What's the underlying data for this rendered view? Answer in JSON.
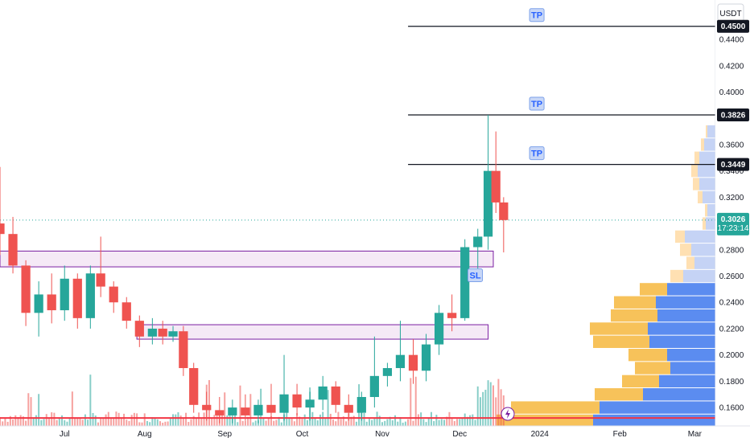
{
  "chart_data": {
    "type": "candlestick",
    "quote_currency": "USDT",
    "price_axis": {
      "ticks": [
        "0.1600",
        "0.1800",
        "0.2000",
        "0.2200",
        "0.2400",
        "0.2600",
        "0.2800",
        "0.3200",
        "0.3400",
        "0.3600",
        "0.4000",
        "0.4200",
        "0.4400"
      ],
      "tick_values": [
        0.16,
        0.18,
        0.2,
        0.22,
        0.24,
        0.26,
        0.28,
        0.32,
        0.34,
        0.36,
        0.4,
        0.42,
        0.44
      ],
      "range": [
        0.146,
        0.47
      ]
    },
    "time_axis": {
      "labels": [
        "Jul",
        "Aug",
        "Sep",
        "Oct",
        "Nov",
        "Dec",
        "2024",
        "Feb",
        "Mar"
      ],
      "label_days": [
        0,
        31,
        62,
        92,
        123,
        153,
        184,
        215,
        244
      ],
      "range_days": [
        -25,
        252
      ]
    },
    "last_price": {
      "value": "0.3026",
      "countdown": "17:23:14",
      "color": "#26a69a"
    },
    "price_tags": [
      {
        "text": "0.3826",
        "value": 0.3826
      },
      {
        "text": "0.3449",
        "value": 0.3449
      },
      {
        "text": "0.4500",
        "value": 0.45
      }
    ],
    "horizontal_lines": [
      {
        "label": "TP",
        "value": 0.45,
        "start_day": 133
      },
      {
        "label": "TP",
        "value": 0.3826,
        "start_day": 133
      },
      {
        "label": "TP",
        "value": 0.3449,
        "start_day": 133
      },
      {
        "label": "",
        "value": 0.152,
        "start_day": -25,
        "color": "#f23645"
      }
    ],
    "zones": [
      {
        "top": 0.279,
        "bottom": 0.267,
        "start_day": -25,
        "end_day": 166
      },
      {
        "top": 0.223,
        "bottom": 0.212,
        "start_day": 28,
        "end_day": 164
      }
    ],
    "markers": [
      {
        "label": "SL",
        "value": 0.26,
        "day": 159
      }
    ],
    "candles": [
      {
        "day": -25,
        "o": 0.3,
        "h": 0.343,
        "l": 0.276,
        "c": 0.292
      },
      {
        "day": -20,
        "o": 0.292,
        "h": 0.305,
        "l": 0.262,
        "c": 0.268
      },
      {
        "day": -15,
        "o": 0.268,
        "h": 0.272,
        "l": 0.222,
        "c": 0.232
      },
      {
        "day": -10,
        "o": 0.232,
        "h": 0.256,
        "l": 0.214,
        "c": 0.246
      },
      {
        "day": -5,
        "o": 0.246,
        "h": 0.262,
        "l": 0.224,
        "c": 0.234
      },
      {
        "day": 0,
        "o": 0.234,
        "h": 0.268,
        "l": 0.226,
        "c": 0.258
      },
      {
        "day": 5,
        "o": 0.258,
        "h": 0.262,
        "l": 0.22,
        "c": 0.228
      },
      {
        "day": 10,
        "o": 0.228,
        "h": 0.268,
        "l": 0.22,
        "c": 0.262
      },
      {
        "day": 14,
        "o": 0.262,
        "h": 0.29,
        "l": 0.244,
        "c": 0.252
      },
      {
        "day": 19,
        "o": 0.252,
        "h": 0.256,
        "l": 0.232,
        "c": 0.24
      },
      {
        "day": 24,
        "o": 0.24,
        "h": 0.244,
        "l": 0.22,
        "c": 0.226
      },
      {
        "day": 29,
        "o": 0.226,
        "h": 0.23,
        "l": 0.206,
        "c": 0.214
      },
      {
        "day": 34,
        "o": 0.214,
        "h": 0.228,
        "l": 0.208,
        "c": 0.22
      },
      {
        "day": 38,
        "o": 0.22,
        "h": 0.226,
        "l": 0.208,
        "c": 0.214
      },
      {
        "day": 42,
        "o": 0.214,
        "h": 0.222,
        "l": 0.21,
        "c": 0.218
      },
      {
        "day": 46,
        "o": 0.218,
        "h": 0.222,
        "l": 0.184,
        "c": 0.19
      },
      {
        "day": 50,
        "o": 0.19,
        "h": 0.194,
        "l": 0.156,
        "c": 0.162
      },
      {
        "day": 55,
        "o": 0.162,
        "h": 0.172,
        "l": 0.15,
        "c": 0.158
      },
      {
        "day": 60,
        "o": 0.158,
        "h": 0.168,
        "l": 0.148,
        "c": 0.154
      },
      {
        "day": 65,
        "o": 0.154,
        "h": 0.166,
        "l": 0.148,
        "c": 0.16
      },
      {
        "day": 70,
        "o": 0.16,
        "h": 0.17,
        "l": 0.15,
        "c": 0.154
      },
      {
        "day": 75,
        "o": 0.154,
        "h": 0.166,
        "l": 0.148,
        "c": 0.162
      },
      {
        "day": 80,
        "o": 0.162,
        "h": 0.178,
        "l": 0.152,
        "c": 0.156
      },
      {
        "day": 85,
        "o": 0.156,
        "h": 0.2,
        "l": 0.15,
        "c": 0.17
      },
      {
        "day": 90,
        "o": 0.17,
        "h": 0.178,
        "l": 0.154,
        "c": 0.16
      },
      {
        "day": 95,
        "o": 0.16,
        "h": 0.172,
        "l": 0.15,
        "c": 0.166
      },
      {
        "day": 100,
        "o": 0.166,
        "h": 0.184,
        "l": 0.158,
        "c": 0.176
      },
      {
        "day": 105,
        "o": 0.176,
        "h": 0.18,
        "l": 0.156,
        "c": 0.162
      },
      {
        "day": 110,
        "o": 0.162,
        "h": 0.17,
        "l": 0.15,
        "c": 0.156
      },
      {
        "day": 115,
        "o": 0.156,
        "h": 0.172,
        "l": 0.15,
        "c": 0.168
      },
      {
        "day": 120,
        "o": 0.168,
        "h": 0.214,
        "l": 0.16,
        "c": 0.184
      },
      {
        "day": 125,
        "o": 0.184,
        "h": 0.194,
        "l": 0.176,
        "c": 0.19
      },
      {
        "day": 130,
        "o": 0.19,
        "h": 0.226,
        "l": 0.18,
        "c": 0.2
      },
      {
        "day": 135,
        "o": 0.2,
        "h": 0.212,
        "l": 0.178,
        "c": 0.188
      },
      {
        "day": 140,
        "o": 0.188,
        "h": 0.216,
        "l": 0.18,
        "c": 0.208
      },
      {
        "day": 145,
        "o": 0.208,
        "h": 0.238,
        "l": 0.2,
        "c": 0.232
      },
      {
        "day": 150,
        "o": 0.232,
        "h": 0.246,
        "l": 0.218,
        "c": 0.228
      },
      {
        "day": 155,
        "o": 0.228,
        "h": 0.288,
        "l": 0.226,
        "c": 0.282
      },
      {
        "day": 160,
        "o": 0.282,
        "h": 0.296,
        "l": 0.262,
        "c": 0.29
      },
      {
        "day": 164,
        "o": 0.29,
        "h": 0.3826,
        "l": 0.28,
        "c": 0.34
      },
      {
        "day": 167,
        "o": 0.34,
        "h": 0.37,
        "l": 0.308,
        "c": 0.316
      },
      {
        "day": 170,
        "o": 0.316,
        "h": 0.32,
        "l": 0.278,
        "c": 0.3026
      }
    ],
    "volume_profile": [
      {
        "price": 0.37,
        "up": 2,
        "down": 10
      },
      {
        "price": 0.36,
        "up": 4,
        "down": 14
      },
      {
        "price": 0.35,
        "up": 6,
        "down": 20
      },
      {
        "price": 0.34,
        "up": 8,
        "down": 22
      },
      {
        "price": 0.33,
        "up": 8,
        "down": 20
      },
      {
        "price": 0.32,
        "up": 6,
        "down": 16
      },
      {
        "price": 0.31,
        "up": 3,
        "down": 10
      },
      {
        "price": 0.3,
        "up": 4,
        "down": 12
      },
      {
        "price": 0.29,
        "up": 12,
        "down": 38
      },
      {
        "price": 0.28,
        "up": 14,
        "down": 30
      },
      {
        "price": 0.27,
        "up": 10,
        "down": 26
      },
      {
        "price": 0.26,
        "up": 16,
        "down": 40
      },
      {
        "price": 0.25,
        "up": 34,
        "down": 60
      },
      {
        "price": 0.24,
        "up": 52,
        "down": 74
      },
      {
        "price": 0.23,
        "up": 58,
        "down": 72
      },
      {
        "price": 0.22,
        "up": 72,
        "down": 84
      },
      {
        "price": 0.21,
        "up": 70,
        "down": 82
      },
      {
        "price": 0.2,
        "up": 48,
        "down": 60
      },
      {
        "price": 0.19,
        "up": 44,
        "down": 56
      },
      {
        "price": 0.18,
        "up": 46,
        "down": 70
      },
      {
        "price": 0.17,
        "up": 60,
        "down": 90
      },
      {
        "price": 0.16,
        "up": 110,
        "down": 144
      },
      {
        "price": 0.15,
        "up": 120,
        "down": 152
      }
    ],
    "colors": {
      "up": "#26a69a",
      "down": "#ef5350",
      "zone_fill": "#f3e5f5",
      "zone_border": "#7b1fa2",
      "tp_line": "#131722",
      "support_line": "#f23645",
      "vp_up_light": "#ffe0b2",
      "vp_up": "#f7c25a",
      "vp_down_light": "#c5d3f5",
      "vp_down": "#5b8cf0"
    }
  }
}
